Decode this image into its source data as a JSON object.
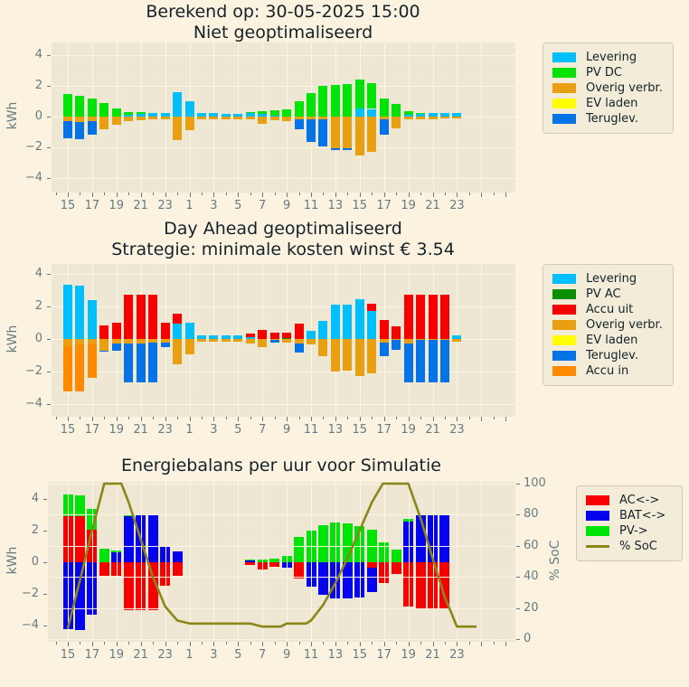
{
  "chart_data": [
    {
      "type": "bar",
      "title_line1": "Berekend op: 30-05-2025 15:00",
      "title_line2": "Niet geoptimaliseerd",
      "ylabel": "kWh",
      "ylim": [
        -5,
        5
      ],
      "ytick_vals": [
        4,
        2,
        0,
        -2,
        -4
      ],
      "yticks": [
        "4",
        "2",
        "0",
        "−2",
        "−4"
      ],
      "xticks": [
        "15",
        "17",
        "19",
        "21",
        "23",
        "1",
        "3",
        "5",
        "7",
        "9",
        "11",
        "13",
        "15",
        "17",
        "19",
        "21",
        "23"
      ],
      "grid": "behind",
      "legend_position": "right-top",
      "hours": [
        15,
        16,
        17,
        18,
        19,
        20,
        21,
        22,
        23,
        0,
        1,
        2,
        3,
        4,
        5,
        6,
        7,
        8,
        9,
        10,
        11,
        12,
        13,
        14,
        15,
        16,
        17,
        18,
        19,
        20,
        21,
        22,
        23
      ],
      "series": [
        {
          "key": "levering",
          "label": "Levering",
          "color": "#00bfff"
        },
        {
          "key": "pv_dc",
          "label": "PV DC",
          "color": "#00e308"
        },
        {
          "key": "overig",
          "label": "Overig verbr.",
          "color": "#e8a012"
        },
        {
          "key": "ev_laden",
          "label": "EV laden",
          "color": "#ffff00"
        },
        {
          "key": "teruglev",
          "label": "Teruglev.",
          "color": "#0573e8"
        }
      ],
      "values": [
        [
          0,
          1.45,
          -0.3,
          0,
          -1.1
        ],
        [
          0,
          1.35,
          -0.35,
          0,
          -1.1
        ],
        [
          0,
          1.2,
          -0.3,
          0,
          -0.9
        ],
        [
          0,
          0.9,
          -0.8,
          0,
          0
        ],
        [
          0,
          0.55,
          -0.5,
          0,
          0
        ],
        [
          0.1,
          0.2,
          -0.3,
          0,
          0
        ],
        [
          0.15,
          0.15,
          -0.25,
          0,
          0
        ],
        [
          0.25,
          0,
          -0.2,
          0,
          0
        ],
        [
          0.25,
          0,
          -0.15,
          0,
          0
        ],
        [
          1.6,
          0,
          -1.55,
          0,
          0
        ],
        [
          1.0,
          0,
          -0.9,
          0,
          0
        ],
        [
          0.25,
          0,
          -0.15,
          0,
          0
        ],
        [
          0.25,
          0,
          -0.15,
          0,
          0
        ],
        [
          0.2,
          0,
          -0.15,
          0,
          0
        ],
        [
          0.2,
          0,
          -0.15,
          0,
          0
        ],
        [
          0.25,
          0.05,
          -0.2,
          0,
          0
        ],
        [
          0.2,
          0.15,
          -0.45,
          0,
          0
        ],
        [
          0.05,
          0.35,
          -0.25,
          0,
          0
        ],
        [
          0,
          0.45,
          -0.3,
          0,
          0
        ],
        [
          0,
          1.0,
          -0.2,
          0,
          -0.6
        ],
        [
          0,
          1.55,
          -0.2,
          0,
          -1.45
        ],
        [
          0,
          2.0,
          -0.2,
          0,
          -1.75
        ],
        [
          0,
          2.05,
          -2.05,
          0,
          -0.1
        ],
        [
          0,
          2.1,
          -2.05,
          0,
          -0.1
        ],
        [
          0.55,
          1.85,
          -2.55,
          0,
          0
        ],
        [
          0.5,
          1.7,
          -2.3,
          0,
          0
        ],
        [
          0,
          1.2,
          -0.2,
          0,
          -0.95
        ],
        [
          0,
          0.8,
          -0.75,
          0,
          0
        ],
        [
          0.1,
          0.25,
          -0.2,
          0,
          0
        ],
        [
          0.15,
          0.1,
          -0.15,
          0,
          0
        ],
        [
          0.25,
          0,
          -0.15,
          0,
          0
        ],
        [
          0.25,
          0,
          -0.1,
          0,
          0
        ],
        [
          0.25,
          0,
          -0.1,
          0,
          0
        ]
      ]
    },
    {
      "type": "bar",
      "title_line1": "Day Ahead geoptimaliseerd",
      "title_line2": "Strategie: minimale kosten winst € 3.54",
      "ylabel": "kWh",
      "ylim": [
        -5,
        5
      ],
      "ytick_vals": [
        4,
        2,
        0,
        -2,
        -4
      ],
      "yticks": [
        "4",
        "2",
        "0",
        "−2",
        "−4"
      ],
      "xticks": [
        "15",
        "17",
        "19",
        "21",
        "23",
        "1",
        "3",
        "5",
        "7",
        "9",
        "11",
        "13",
        "15",
        "17",
        "19",
        "21",
        "23"
      ],
      "grid": "behind",
      "legend_position": "right-top",
      "hours": [
        15,
        16,
        17,
        18,
        19,
        20,
        21,
        22,
        23,
        0,
        1,
        2,
        3,
        4,
        5,
        6,
        7,
        8,
        9,
        10,
        11,
        12,
        13,
        14,
        15,
        16,
        17,
        18,
        19,
        20,
        21,
        22,
        23
      ],
      "series": [
        {
          "key": "levering",
          "label": "Levering",
          "color": "#00bfff"
        },
        {
          "key": "pv_ac",
          "label": "PV AC",
          "color": "#089000"
        },
        {
          "key": "accu_uit",
          "label": "Accu uit",
          "color": "#f80000"
        },
        {
          "key": "overig",
          "label": "Overig verbr.",
          "color": "#e8a012"
        },
        {
          "key": "ev_laden",
          "label": "EV laden",
          "color": "#ffff00"
        },
        {
          "key": "teruglev",
          "label": "Teruglev.",
          "color": "#0573e8"
        },
        {
          "key": "accu_in",
          "label": "Accu in",
          "color": "#ff8a00"
        }
      ],
      "values": [
        [
          3.35,
          0,
          0,
          -0.45,
          0,
          0,
          -2.75
        ],
        [
          3.3,
          0,
          0,
          -0.35,
          0,
          0,
          -2.9
        ],
        [
          2.4,
          0,
          0,
          -0.3,
          0,
          0,
          -2.1
        ],
        [
          0,
          0,
          0.85,
          -0.7,
          0,
          -0.1,
          0
        ],
        [
          0,
          0,
          1.0,
          -0.3,
          0,
          -0.45,
          0
        ],
        [
          0,
          0,
          2.75,
          -0.3,
          0,
          -2.35,
          0
        ],
        [
          0,
          0,
          2.75,
          -0.25,
          0,
          -2.4,
          0
        ],
        [
          0,
          0,
          2.75,
          -0.2,
          0,
          -2.45,
          0
        ],
        [
          0,
          0,
          1.0,
          -0.2,
          0,
          -0.3,
          0
        ],
        [
          0.95,
          0,
          0.6,
          -1.55,
          0,
          0,
          0
        ],
        [
          1.0,
          0,
          0,
          -0.95,
          0,
          0,
          0
        ],
        [
          0.25,
          0,
          0,
          -0.15,
          0,
          0,
          0
        ],
        [
          0.25,
          0,
          0,
          -0.15,
          0,
          0,
          0
        ],
        [
          0.25,
          0,
          0,
          -0.15,
          0,
          0,
          0
        ],
        [
          0.25,
          0,
          0,
          -0.15,
          0,
          0,
          0
        ],
        [
          0.1,
          0,
          0.25,
          -0.3,
          0,
          0,
          0
        ],
        [
          0,
          0,
          0.55,
          -0.5,
          0,
          0,
          0
        ],
        [
          0,
          0,
          0.4,
          -0.05,
          0,
          -0.2,
          0
        ],
        [
          0,
          0.05,
          0.35,
          -0.2,
          0,
          0,
          0
        ],
        [
          0,
          0,
          0.95,
          -0.25,
          0,
          -0.6,
          0
        ],
        [
          0.5,
          0,
          0,
          -0.35,
          0,
          0,
          0
        ],
        [
          1.1,
          0,
          0,
          -1.05,
          0,
          0,
          0
        ],
        [
          2.1,
          0,
          0,
          -2.0,
          0,
          0,
          0
        ],
        [
          2.1,
          0,
          0,
          -1.95,
          0,
          0,
          0
        ],
        [
          2.45,
          0,
          0,
          -2.25,
          0,
          0,
          0
        ],
        [
          1.7,
          0,
          0.45,
          -2.1,
          0,
          0,
          0
        ],
        [
          0,
          0,
          1.15,
          -0.2,
          0,
          -0.85,
          0
        ],
        [
          0,
          0,
          0.8,
          -0.05,
          0,
          -0.6,
          0
        ],
        [
          0,
          0,
          2.75,
          -0.25,
          0,
          -2.4,
          0
        ],
        [
          0,
          0,
          2.75,
          -0.05,
          0,
          -2.6,
          0
        ],
        [
          0,
          0,
          2.75,
          -0.05,
          0,
          -2.6,
          0
        ],
        [
          0,
          0,
          2.75,
          -0.05,
          0,
          -2.6,
          0
        ],
        [
          0.2,
          0,
          0,
          -0.15,
          0,
          0,
          0
        ]
      ]
    },
    {
      "type": "bar+line",
      "title_line1": "Energiebalans per uur voor Simulatie",
      "ylabel": "kWh",
      "ylabel_right": "% SoC",
      "ylim": [
        -5,
        5
      ],
      "ylim_right": [
        0,
        100
      ],
      "ytick_vals": [
        4,
        2,
        0,
        -2,
        -4
      ],
      "yticks": [
        "4",
        "2",
        "0",
        "−2",
        "−4"
      ],
      "yticks_right_vals": [
        100,
        80,
        60,
        40,
        20,
        0
      ],
      "yticks_right": [
        "100",
        "80",
        "60",
        "40",
        "20",
        "0"
      ],
      "xticks": [
        "15",
        "17",
        "19",
        "21",
        "23",
        "1",
        "3",
        "5",
        "7",
        "9",
        "11",
        "13",
        "15",
        "17",
        "19",
        "21",
        "23"
      ],
      "grid": "overlay-soc",
      "legend_position": "right-top",
      "hours": [
        15,
        16,
        17,
        18,
        19,
        20,
        21,
        22,
        23,
        0,
        1,
        2,
        3,
        4,
        5,
        6,
        7,
        8,
        9,
        10,
        11,
        12,
        13,
        14,
        15,
        16,
        17,
        18,
        19,
        20,
        21,
        22,
        23
      ],
      "series": [
        {
          "key": "ac",
          "label": "AC<->",
          "color": "#f80000"
        },
        {
          "key": "bat",
          "label": "BAT<->",
          "color": "#0404ee"
        },
        {
          "key": "pv",
          "label": "PV->",
          "color": "#00e308"
        }
      ],
      "values": [
        [
          2.9,
          -4.2,
          1.4
        ],
        [
          2.9,
          -4.3,
          1.35
        ],
        [
          2.05,
          -3.3,
          1.3
        ],
        [
          -0.85,
          0,
          0.85
        ],
        [
          -0.85,
          0.65,
          0.1
        ],
        [
          -3.0,
          2.9,
          0.05
        ],
        [
          -3.0,
          2.95,
          0
        ],
        [
          -3.0,
          2.95,
          0
        ],
        [
          -1.5,
          0.95,
          0
        ],
        [
          -0.85,
          0.7,
          0
        ],
        [
          0,
          0,
          0
        ],
        [
          0,
          0,
          0
        ],
        [
          0,
          0,
          0
        ],
        [
          0,
          0,
          0
        ],
        [
          0,
          0,
          0
        ],
        [
          -0.15,
          0.1,
          0.1
        ],
        [
          -0.45,
          0,
          0.2
        ],
        [
          -0.3,
          0,
          0.25
        ],
        [
          0,
          -0.35,
          0.4
        ],
        [
          -1.05,
          0,
          1.6
        ],
        [
          0,
          -1.55,
          2.0
        ],
        [
          0,
          -2.05,
          2.35
        ],
        [
          0,
          -2.3,
          2.5
        ],
        [
          0,
          -2.3,
          2.45
        ],
        [
          0,
          -2.2,
          2.3
        ],
        [
          -0.35,
          -1.55,
          2.05
        ],
        [
          -1.3,
          0,
          1.25
        ],
        [
          -0.75,
          0,
          0.8
        ],
        [
          -2.8,
          2.6,
          0.15
        ],
        [
          -2.95,
          2.95,
          0
        ],
        [
          -2.95,
          2.95,
          0
        ],
        [
          -2.95,
          2.95,
          0
        ],
        [
          0,
          0,
          0
        ]
      ],
      "soc_line": {
        "label": "% SoC",
        "color": "#8a8618",
        "points_hour_index_pct": [
          [
            0,
            7
          ],
          [
            1,
            38
          ],
          [
            2,
            70
          ],
          [
            3,
            100
          ],
          [
            4.4,
            100
          ],
          [
            5,
            88
          ],
          [
            6,
            64
          ],
          [
            7,
            40
          ],
          [
            8,
            21
          ],
          [
            9,
            12
          ],
          [
            10,
            10
          ],
          [
            15,
            10
          ],
          [
            16,
            8
          ],
          [
            17.5,
            8
          ],
          [
            18,
            10
          ],
          [
            19.6,
            10
          ],
          [
            20,
            12
          ],
          [
            21,
            22
          ],
          [
            22,
            36
          ],
          [
            23,
            52
          ],
          [
            24,
            70
          ],
          [
            25,
            88
          ],
          [
            25.9,
            100
          ],
          [
            28,
            100
          ],
          [
            29,
            78
          ],
          [
            30,
            52
          ],
          [
            31,
            27
          ],
          [
            32,
            8
          ],
          [
            33.6,
            8
          ]
        ]
      }
    }
  ],
  "theme": {
    "figure_bg": "#fbf3df",
    "plot_bg": "#ede7d4",
    "grid_color": "#fdf6e3",
    "tick_color": "#657b83",
    "title_color": "#15222a"
  }
}
